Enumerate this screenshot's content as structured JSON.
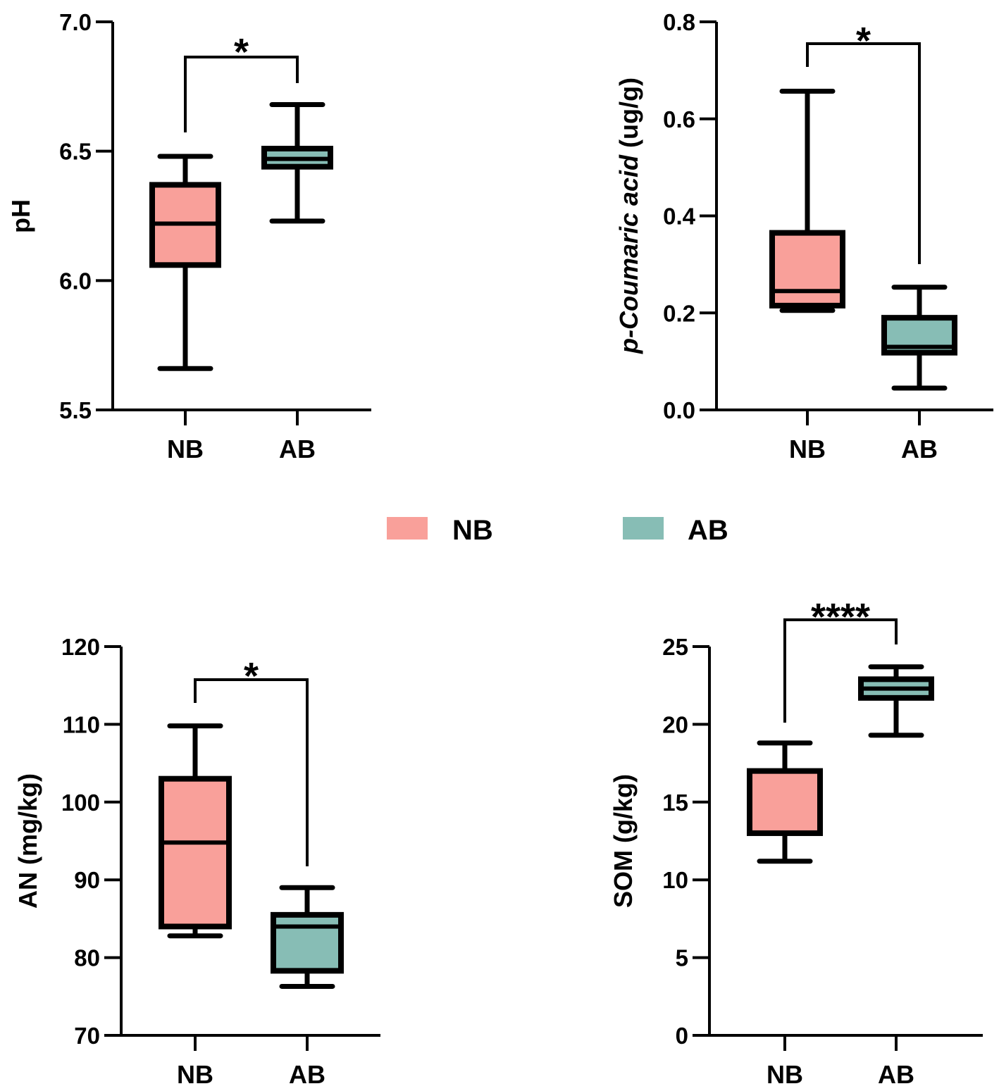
{
  "colors": {
    "NB": "#f9a09a",
    "AB": "#87bdb5",
    "stroke": "#000000"
  },
  "legend": {
    "entries": [
      {
        "label": "NB",
        "color": "#f9a09a"
      },
      {
        "label": "AB",
        "color": "#87bdb5"
      }
    ]
  },
  "chart_data": [
    {
      "type": "box",
      "ylabel": "pH",
      "ylim": [
        5.5,
        7.0
      ],
      "yticks": [
        5.5,
        6.0,
        6.5,
        7.0
      ],
      "ytick_labels": [
        "5.5",
        "6.0",
        "6.5",
        "7.0"
      ],
      "categories": [
        "NB",
        "AB"
      ],
      "boxes": [
        {
          "name": "NB",
          "min": 5.66,
          "q1": 6.06,
          "median": 6.22,
          "q3": 6.37,
          "max": 6.48
        },
        {
          "name": "AB",
          "min": 6.23,
          "q1": 6.44,
          "median": 6.47,
          "q3": 6.51,
          "max": 6.68
        }
      ],
      "significance": "*"
    },
    {
      "type": "box",
      "ylabel": "p-Coumaric acid (ug/g)",
      "ylim": [
        0.0,
        0.8
      ],
      "yticks": [
        0.0,
        0.2,
        0.4,
        0.6,
        0.8
      ],
      "ytick_labels": [
        "0.0",
        "0.2",
        "0.4",
        "0.6",
        "0.8"
      ],
      "categories": [
        "NB",
        "AB"
      ],
      "boxes": [
        {
          "name": "NB",
          "min": 0.205,
          "q1": 0.215,
          "median": 0.245,
          "q3": 0.365,
          "max": 0.657
        },
        {
          "name": "AB",
          "min": 0.045,
          "q1": 0.118,
          "median": 0.13,
          "q3": 0.19,
          "max": 0.253
        }
      ],
      "significance": "*"
    },
    {
      "type": "box",
      "ylabel": "AN (mg/kg)",
      "ylim": [
        70,
        120
      ],
      "yticks": [
        70,
        80,
        90,
        100,
        110,
        120
      ],
      "ytick_labels": [
        "70",
        "80",
        "90",
        "100",
        "110",
        "120"
      ],
      "categories": [
        "NB",
        "AB"
      ],
      "boxes": [
        {
          "name": "NB",
          "min": 82.8,
          "q1": 84.0,
          "median": 94.8,
          "q3": 103.0,
          "max": 109.8
        },
        {
          "name": "AB",
          "min": 76.3,
          "q1": 78.3,
          "median": 84.0,
          "q3": 85.5,
          "max": 89.0
        }
      ],
      "significance": "*"
    },
    {
      "type": "box",
      "ylabel": "SOM (g/kg)",
      "ylim": [
        0,
        25
      ],
      "yticks": [
        0,
        5,
        10,
        15,
        20,
        25
      ],
      "ytick_labels": [
        "0",
        "5",
        "10",
        "15",
        "20",
        "25"
      ],
      "categories": [
        "NB",
        "AB"
      ],
      "boxes": [
        {
          "name": "NB",
          "min": 11.2,
          "q1": 13.0,
          "median": 13.0,
          "q3": 17.0,
          "max": 18.8
        },
        {
          "name": "AB",
          "min": 19.3,
          "q1": 21.7,
          "median": 22.3,
          "q3": 22.9,
          "max": 23.7
        }
      ],
      "significance": "****"
    }
  ]
}
